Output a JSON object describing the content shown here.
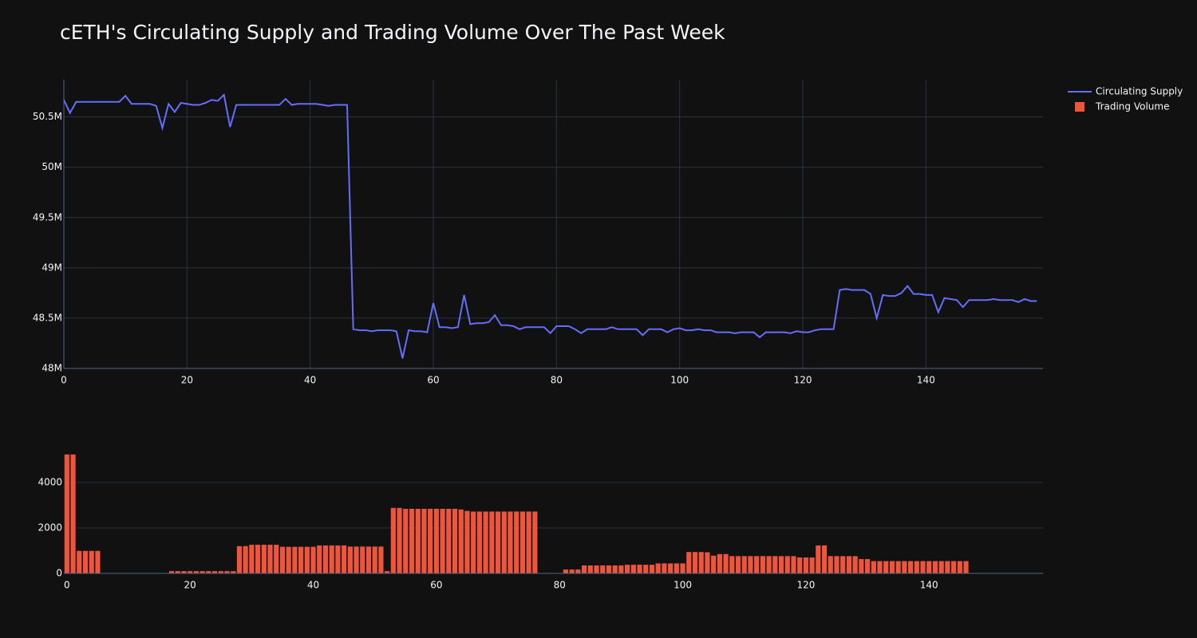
{
  "chart_data": [
    {
      "type": "line",
      "title": "cETH's Circulating Supply and Trading Volume Over The Past Week",
      "legend": "top-right",
      "grid": true,
      "x": [
        0,
        1,
        2,
        3,
        4,
        5,
        6,
        7,
        8,
        9,
        10,
        11,
        12,
        13,
        14,
        15,
        16,
        17,
        18,
        19,
        20,
        21,
        22,
        23,
        24,
        25,
        26,
        27,
        28,
        29,
        30,
        31,
        32,
        33,
        34,
        35,
        36,
        37,
        38,
        39,
        40,
        41,
        42,
        43,
        44,
        45,
        46,
        47,
        48,
        49,
        50,
        51,
        52,
        53,
        54,
        55,
        56,
        57,
        58,
        59,
        60,
        61,
        62,
        63,
        64,
        65,
        66,
        67,
        68,
        69,
        70,
        71,
        72,
        73,
        74,
        75,
        76,
        77,
        78,
        79,
        80,
        81,
        82,
        83,
        84,
        85,
        86,
        87,
        88,
        89,
        90,
        91,
        92,
        93,
        94,
        95,
        96,
        97,
        98,
        99,
        100,
        101,
        102,
        103,
        104,
        105,
        106,
        107,
        108,
        109,
        110,
        111,
        112,
        113,
        114,
        115,
        116,
        117,
        118,
        119,
        120,
        121,
        122,
        123,
        124,
        125,
        126,
        127,
        128,
        129,
        130,
        131,
        132,
        133,
        134,
        135,
        136,
        137,
        138,
        139,
        140,
        141,
        142,
        143,
        144,
        145,
        146,
        147,
        148,
        149,
        150,
        151,
        152,
        153,
        154,
        155,
        156,
        157,
        158
      ],
      "series": [
        {
          "name": "Circulating Supply",
          "color": "#636efa",
          "values": [
            50670000,
            50540000,
            50650000,
            50650000,
            50650000,
            50650000,
            50650000,
            50650000,
            50650000,
            50650000,
            50710000,
            50630000,
            50630000,
            50630000,
            50630000,
            50610000,
            50390000,
            50630000,
            50550000,
            50640000,
            50630000,
            50620000,
            50620000,
            50640000,
            50670000,
            50660000,
            50720000,
            50400000,
            50620000,
            50620000,
            50620000,
            50620000,
            50620000,
            50620000,
            50620000,
            50620000,
            50680000,
            50620000,
            50630000,
            50630000,
            50630000,
            50630000,
            50620000,
            50610000,
            50620000,
            50620000,
            50620000,
            48390000,
            48380000,
            48380000,
            48370000,
            48380000,
            48380000,
            48380000,
            48370000,
            48100000,
            48380000,
            48370000,
            48370000,
            48360000,
            48650000,
            48410000,
            48410000,
            48400000,
            48410000,
            48730000,
            48440000,
            48450000,
            48450000,
            48460000,
            48530000,
            48430000,
            48430000,
            48420000,
            48390000,
            48410000,
            48410000,
            48410000,
            48410000,
            48350000,
            48420000,
            48420000,
            48420000,
            48390000,
            48350000,
            48390000,
            48390000,
            48390000,
            48390000,
            48410000,
            48390000,
            48390000,
            48390000,
            48390000,
            48330000,
            48390000,
            48390000,
            48390000,
            48360000,
            48390000,
            48400000,
            48380000,
            48380000,
            48390000,
            48380000,
            48380000,
            48360000,
            48360000,
            48360000,
            48350000,
            48360000,
            48360000,
            48360000,
            48310000,
            48360000,
            48360000,
            48360000,
            48360000,
            48350000,
            48370000,
            48360000,
            48360000,
            48380000,
            48390000,
            48390000,
            48390000,
            48780000,
            48790000,
            48780000,
            48780000,
            48780000,
            48740000,
            48500000,
            48730000,
            48720000,
            48720000,
            48750000,
            48820000,
            48740000,
            48740000,
            48730000,
            48730000,
            48560000,
            48700000,
            48690000,
            48680000,
            48610000,
            48680000,
            48680000,
            48680000,
            48680000,
            48690000,
            48680000,
            48680000,
            48680000,
            48660000,
            48690000,
            48670000,
            48670000
          ]
        }
      ],
      "xlim": [
        0,
        159
      ],
      "xticks": [
        0,
        20,
        40,
        60,
        80,
        100,
        120,
        140
      ],
      "ylim": [
        48000000,
        50870000
      ],
      "yticks": [
        {
          "value": 48000000,
          "label": "48M"
        },
        {
          "value": 48500000,
          "label": "48.5M"
        },
        {
          "value": 49000000,
          "label": "49M"
        },
        {
          "value": 49500000,
          "label": "49.5M"
        },
        {
          "value": 50000000,
          "label": "50M"
        },
        {
          "value": 50500000,
          "label": "50.5M"
        }
      ]
    },
    {
      "type": "bar",
      "grid": true,
      "x": [
        0,
        1,
        2,
        3,
        4,
        5,
        6,
        7,
        8,
        9,
        10,
        11,
        12,
        13,
        14,
        15,
        16,
        17,
        18,
        19,
        20,
        21,
        22,
        23,
        24,
        25,
        26,
        27,
        28,
        29,
        30,
        31,
        32,
        33,
        34,
        35,
        36,
        37,
        38,
        39,
        40,
        41,
        42,
        43,
        44,
        45,
        46,
        47,
        48,
        49,
        50,
        51,
        52,
        53,
        54,
        55,
        56,
        57,
        58,
        59,
        60,
        61,
        62,
        63,
        64,
        65,
        66,
        67,
        68,
        69,
        70,
        71,
        72,
        73,
        74,
        75,
        76,
        77,
        78,
        79,
        80,
        81,
        82,
        83,
        84,
        85,
        86,
        87,
        88,
        89,
        90,
        91,
        92,
        93,
        94,
        95,
        96,
        97,
        98,
        99,
        100,
        101,
        102,
        103,
        104,
        105,
        106,
        107,
        108,
        109,
        110,
        111,
        112,
        113,
        114,
        115,
        116,
        117,
        118,
        119,
        120,
        121,
        122,
        123,
        124,
        125,
        126,
        127,
        128,
        129,
        130,
        131,
        132,
        133,
        134,
        135,
        136,
        137,
        138,
        139,
        140,
        141,
        142,
        143,
        144,
        145,
        146,
        147,
        148,
        149,
        150,
        151,
        152,
        153,
        154,
        155,
        156,
        157,
        158
      ],
      "series": [
        {
          "name": "Trading Volume",
          "color": "#ef553b",
          "values": [
            5230,
            5230,
            990,
            990,
            990,
            990,
            0,
            0,
            0,
            0,
            0,
            0,
            0,
            0,
            0,
            0,
            0,
            100,
            100,
            100,
            100,
            100,
            100,
            100,
            100,
            100,
            100,
            100,
            1200,
            1200,
            1260,
            1260,
            1260,
            1260,
            1260,
            1170,
            1170,
            1170,
            1170,
            1170,
            1170,
            1230,
            1230,
            1230,
            1230,
            1230,
            1180,
            1180,
            1180,
            1180,
            1180,
            1180,
            100,
            2880,
            2880,
            2840,
            2840,
            2840,
            2840,
            2840,
            2840,
            2840,
            2840,
            2840,
            2810,
            2750,
            2720,
            2720,
            2720,
            2720,
            2720,
            2720,
            2720,
            2720,
            2720,
            2720,
            2720,
            0,
            0,
            0,
            0,
            170,
            170,
            170,
            350,
            350,
            350,
            350,
            350,
            350,
            350,
            380,
            380,
            380,
            380,
            380,
            440,
            440,
            440,
            440,
            440,
            940,
            940,
            940,
            930,
            780,
            850,
            850,
            760,
            760,
            760,
            760,
            760,
            760,
            760,
            760,
            760,
            760,
            760,
            700,
            700,
            700,
            1230,
            1230,
            760,
            760,
            760,
            760,
            760,
            630,
            630,
            540,
            540,
            540,
            540,
            540,
            540,
            540,
            540,
            540,
            540,
            540,
            540,
            540,
            540,
            540,
            540,
            0,
            0,
            0,
            0,
            0,
            0,
            0,
            0,
            0,
            0,
            0,
            0
          ]
        }
      ],
      "xlim": [
        -0.5,
        158.5
      ],
      "xticks": [
        0,
        20,
        40,
        60,
        80,
        100,
        120,
        140
      ],
      "ylim": [
        0,
        5400
      ],
      "yticks": [
        0,
        2000,
        4000
      ]
    }
  ]
}
